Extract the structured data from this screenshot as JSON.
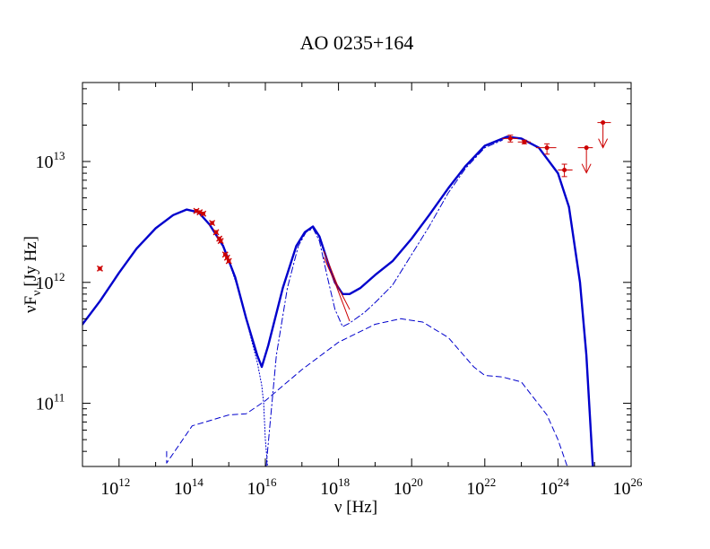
{
  "chart_data": {
    "type": "scatter",
    "title": "AO 0235+164",
    "xlabel": "ν [Hz]",
    "ylabel_main": "νF",
    "ylabel_sub": "ν",
    "ylabel_unit": "[Jy Hz]",
    "xscale": "log",
    "yscale": "log",
    "xlim": [
      100000000000.0,
      1e+26
    ],
    "ylim": [
      30000000000.0,
      45000000000000.0
    ],
    "grid": false,
    "x_ticks": [
      {
        "value": 1000000000000.0,
        "base": "10",
        "exp": "12"
      },
      {
        "value": 100000000000000.0,
        "base": "10",
        "exp": "14"
      },
      {
        "value": 1e+16,
        "base": "10",
        "exp": "16"
      },
      {
        "value": 1e+18,
        "base": "10",
        "exp": "18"
      },
      {
        "value": 1e+20,
        "base": "10",
        "exp": "20"
      },
      {
        "value": 1e+22,
        "base": "10",
        "exp": "22"
      },
      {
        "value": 1e+24,
        "base": "10",
        "exp": "24"
      },
      {
        "value": 1e+26,
        "base": "10",
        "exp": "26"
      }
    ],
    "y_ticks": [
      {
        "value": 100000000000.0,
        "base": "10",
        "exp": "11"
      },
      {
        "value": 1000000000000.0,
        "base": "10",
        "exp": "12"
      },
      {
        "value": 10000000000000.0,
        "base": "10",
        "exp": "13"
      }
    ],
    "colors": {
      "model": "#0000cc",
      "data": "#cc0000",
      "axis": "#000000"
    },
    "series": [
      {
        "role": "total model",
        "style": "solid-thick",
        "color": "#0000cc",
        "points": [
          [
            100000000000.0,
            450000000000.0
          ],
          [
            300000000000.0,
            700000000000.0
          ],
          [
            1000000000000.0,
            1200000000000.0
          ],
          [
            3000000000000.0,
            1900000000000.0
          ],
          [
            10000000000000.0,
            2800000000000.0
          ],
          [
            30000000000000.0,
            3600000000000.0
          ],
          [
            70000000000000.0,
            4000000000000.0
          ],
          [
            150000000000000.0,
            3800000000000.0
          ],
          [
            300000000000000.0,
            3000000000000.0
          ],
          [
            700000000000000.0,
            2000000000000.0
          ],
          [
            1500000000000000.0,
            1100000000000.0
          ],
          [
            3000000000000000.0,
            500000000000.0
          ],
          [
            6000000000000000.0,
            250000000000.0
          ],
          [
            8000000000000000.0,
            200000000000.0
          ],
          [
            1.2e+16,
            300000000000.0
          ],
          [
            3e+16,
            900000000000.0
          ],
          [
            7e+16,
            2000000000000.0
          ],
          [
            1.2e+17,
            2600000000000.0
          ],
          [
            2e+17,
            2900000000000.0
          ],
          [
            3e+17,
            2400000000000.0
          ],
          [
            5e+17,
            1500000000000.0
          ],
          [
            8e+17,
            1000000000000.0
          ],
          [
            1.3e+18,
            800000000000.0
          ],
          [
            2e+18,
            800000000000.0
          ],
          [
            4e+18,
            900000000000.0
          ],
          [
            1e+19,
            1150000000000.0
          ],
          [
            3e+19,
            1500000000000.0
          ],
          [
            1e+20,
            2300000000000.0
          ],
          [
            3e+20,
            3600000000000.0
          ],
          [
            1e+21,
            6000000000000.0
          ],
          [
            3e+21,
            9200000000000.0
          ],
          [
            1e+22,
            13500000000000.0
          ],
          [
            4e+22,
            16000000000000.0
          ],
          [
            1e+23,
            15500000000000.0
          ],
          [
            3e+23,
            13000000000000.0
          ],
          [
            1e+24,
            8000000000000.0
          ],
          [
            2e+24,
            4200000000000.0
          ],
          [
            4e+24,
            1000000000000.0
          ],
          [
            6e+24,
            250000000000.0
          ],
          [
            9e+24,
            30000000000.0
          ]
        ]
      },
      {
        "role": "synchrotron",
        "style": "dotted",
        "color": "#0000cc",
        "points": [
          [
            1000000000000000.0,
            1500000000000.0
          ],
          [
            2000000000000000.0,
            800000000000.0
          ],
          [
            4000000000000000.0,
            350000000000.0
          ],
          [
            6000000000000000.0,
            220000000000.0
          ],
          [
            8000000000000000.0,
            140000000000.0
          ],
          [
            9000000000000000.0,
            100000000000.0
          ],
          [
            1e+16,
            50000000000.0
          ],
          [
            1.15e+16,
            30000000000.0
          ]
        ]
      },
      {
        "role": "disc + corona",
        "style": "dash-dot",
        "color": "#0000cc",
        "points": [
          [
            1.05e+16,
            30000000000.0
          ],
          [
            1.3e+16,
            60000000000.0
          ],
          [
            2e+16,
            250000000000.0
          ],
          [
            4e+16,
            900000000000.0
          ],
          [
            8e+16,
            2000000000000.0
          ],
          [
            1.3e+17,
            2600000000000.0
          ],
          [
            2e+17,
            2800000000000.0
          ],
          [
            3e+17,
            2200000000000.0
          ],
          [
            5e+17,
            1100000000000.0
          ],
          [
            8e+17,
            600000000000.0
          ],
          [
            1.3e+18,
            430000000000.0
          ],
          [
            2e+18,
            460000000000.0
          ],
          [
            5e+18,
            560000000000.0
          ],
          [
            1e+19,
            680000000000.0
          ],
          [
            3e+19,
            950000000000.0
          ],
          [
            1e+20,
            1700000000000.0
          ],
          [
            3e+20,
            2900000000000.0
          ],
          [
            1e+21,
            5500000000000.0
          ],
          [
            3e+21,
            8800000000000.0
          ],
          [
            1e+22,
            13000000000000.0
          ],
          [
            3e+22,
            15000000000000.0
          ]
        ]
      },
      {
        "role": "SSC",
        "style": "dashed",
        "color": "#0000cc",
        "points": [
          [
            20000000000000.0,
            40000000000.0
          ],
          [
            20000000000000.0,
            32000000000.0
          ],
          [
            100000000000000.0,
            65000000000.0
          ],
          [
            1000000000000000.0,
            80000000000.0
          ],
          [
            3000000000000000.0,
            82000000000.0
          ],
          [
            1e+16,
            105000000000.0
          ],
          [
            1e+17,
            190000000000.0
          ],
          [
            1e+18,
            320000000000.0
          ],
          [
            1e+19,
            450000000000.0
          ],
          [
            5e+19,
            500000000000.0
          ],
          [
            2e+20,
            470000000000.0
          ],
          [
            1e+21,
            350000000000.0
          ],
          [
            5e+21,
            200000000000.0
          ],
          [
            1e+22,
            170000000000.0
          ],
          [
            3e+22,
            165000000000.0
          ],
          [
            1e+23,
            150000000000.0
          ],
          [
            5e+23,
            80000000000.0
          ],
          [
            1e+24,
            50000000000.0
          ],
          [
            1.8e+24,
            30000000000.0
          ]
        ]
      },
      {
        "role": "X-ray bowtie upper",
        "style": "thin-solid",
        "color": "#cc0000",
        "points": [
          [
            4e+17,
            1800000000000.0
          ],
          [
            1e+18,
            900000000000.0
          ],
          [
            2e+18,
            600000000000.0
          ]
        ]
      },
      {
        "role": "X-ray bowtie lower",
        "style": "thin-solid",
        "color": "#cc0000",
        "points": [
          [
            4e+17,
            1600000000000.0
          ],
          [
            8e+17,
            1000000000000.0
          ],
          [
            2e+18,
            480000000000.0
          ]
        ]
      }
    ],
    "data_points": [
      {
        "x": 300000000000.0,
        "y": 1300000000000.0
      },
      {
        "x": 130000000000000.0,
        "y": 3900000000000.0
      },
      {
        "x": 160000000000000.0,
        "y": 3800000000000.0
      },
      {
        "x": 200000000000000.0,
        "y": 3700000000000.0
      },
      {
        "x": 350000000000000.0,
        "y": 3100000000000.0
      },
      {
        "x": 450000000000000.0,
        "y": 2600000000000.0
      },
      {
        "x": 550000000000000.0,
        "y": 2300000000000.0
      },
      {
        "x": 600000000000000.0,
        "y": 2200000000000.0
      },
      {
        "x": 800000000000000.0,
        "y": 1700000000000.0
      },
      {
        "x": 900000000000000.0,
        "y": 1600000000000.0
      },
      {
        "x": 1000000000000000.0,
        "y": 1500000000000.0
      }
    ],
    "gamma_points": [
      {
        "x": 5e+22,
        "y": 15500000000000.0,
        "xerr_lo": 3e+22,
        "xerr_hi": 8e+22,
        "yerr_lo": 14500000000000.0,
        "yerr_hi": 16500000000000.0
      },
      {
        "x": 1.2e+23,
        "y": 14500000000000.0,
        "xerr_lo": 8e+22,
        "xerr_hi": 1.8e+23,
        "yerr_lo": 14000000000000.0,
        "yerr_hi": 15000000000000.0
      },
      {
        "x": 5e+23,
        "y": 13000000000000.0,
        "xerr_lo": 2.5e+23,
        "xerr_hi": 9e+23,
        "yerr_lo": 11500000000000.0,
        "yerr_hi": 14000000000000.0
      },
      {
        "x": 1.5e+24,
        "y": 8500000000000.0,
        "xerr_lo": 1e+24,
        "xerr_hi": 2.5e+24,
        "yerr_lo": 7500000000000.0,
        "yerr_hi": 9500000000000.0
      }
    ],
    "upper_limits": [
      {
        "x": 6e+24,
        "y": 13000000000000.0,
        "xerr_lo": 3.5e+24,
        "xerr_hi": 9e+24
      },
      {
        "x": 1.7e+25,
        "y": 21000000000000.0,
        "xerr_lo": 1.2e+25,
        "xerr_hi": 2.8e+25
      }
    ]
  }
}
